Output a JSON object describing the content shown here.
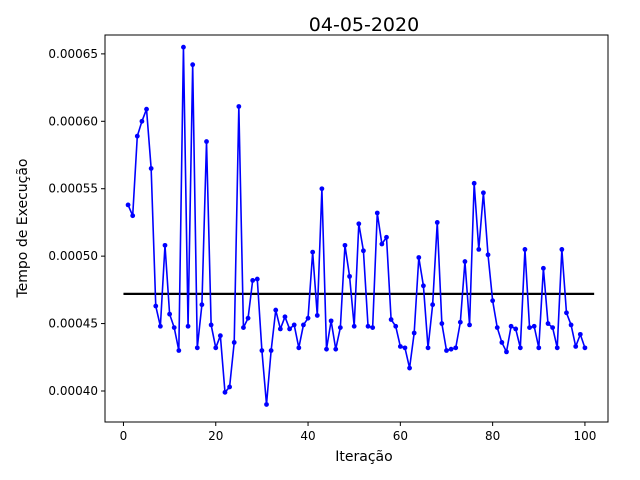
{
  "chart_data": {
    "type": "line",
    "title": "04-05-2020",
    "xlabel": "Iteração",
    "ylabel": "Tempo de Execução",
    "xlim": [
      -4,
      105
    ],
    "ylim": [
      0.000377,
      0.000664
    ],
    "xticks": [
      0,
      20,
      40,
      60,
      80,
      100
    ],
    "yticks": [
      0.0004,
      0.00045,
      0.0005,
      0.00055,
      0.0006,
      0.00065
    ],
    "ytick_labels": [
      "0.00040",
      "0.00045",
      "0.00050",
      "0.00055",
      "0.00060",
      "0.00065"
    ],
    "grid": false,
    "colors": {
      "series": "#0000ff",
      "reference": "#000000"
    },
    "series": [
      {
        "x": [
          1,
          2,
          3,
          4,
          5,
          6,
          7,
          8,
          9,
          10,
          11,
          12,
          13,
          14,
          15,
          16,
          17,
          18,
          19,
          20,
          21,
          22,
          23,
          24,
          25,
          26,
          27,
          28,
          29,
          30,
          31,
          32,
          33,
          34,
          35,
          36,
          37,
          38,
          39,
          40,
          41,
          42,
          43,
          44,
          45,
          46,
          47,
          48,
          49,
          50,
          51,
          52,
          53,
          54,
          55,
          56,
          57,
          58,
          59,
          60,
          61,
          62,
          63,
          64,
          65,
          66,
          67,
          68,
          69,
          70,
          71,
          72,
          73,
          74,
          75,
          76,
          77,
          78,
          79,
          80,
          81,
          82,
          83,
          84,
          85,
          86,
          87,
          88,
          89,
          90,
          91,
          92,
          93,
          94,
          95,
          96,
          97,
          98,
          99,
          100
        ],
        "values": [
          0.000538,
          0.00053,
          0.000589,
          0.0006,
          0.000609,
          0.000565,
          0.000463,
          0.000448,
          0.000508,
          0.000457,
          0.000447,
          0.00043,
          0.000655,
          0.000448,
          0.000642,
          0.000432,
          0.000464,
          0.000585,
          0.000449,
          0.000432,
          0.000441,
          0.000399,
          0.000403,
          0.000436,
          0.000611,
          0.000447,
          0.000454,
          0.000482,
          0.000483,
          0.00043,
          0.00039,
          0.00043,
          0.00046,
          0.000446,
          0.000455,
          0.000446,
          0.000449,
          0.000432,
          0.000449,
          0.000454,
          0.000503,
          0.000456,
          0.00055,
          0.000431,
          0.000452,
          0.000431,
          0.000447,
          0.000508,
          0.000485,
          0.000448,
          0.000524,
          0.000504,
          0.000448,
          0.000447,
          0.000532,
          0.000509,
          0.000514,
          0.000453,
          0.000448,
          0.000433,
          0.000432,
          0.000417,
          0.000443,
          0.000499,
          0.000478,
          0.000432,
          0.000464,
          0.000525,
          0.00045,
          0.00043,
          0.000431,
          0.000432,
          0.000451,
          0.000496,
          0.000449,
          0.000554,
          0.000505,
          0.000547,
          0.000501,
          0.000467,
          0.000447,
          0.000436,
          0.000429,
          0.000448,
          0.000446,
          0.000432,
          0.000505,
          0.000447,
          0.000448,
          0.000432,
          0.000491,
          0.00045,
          0.000447,
          0.000432,
          0.000505,
          0.000458,
          0.000449,
          0.000433,
          0.000442,
          0.000432
        ]
      }
    ],
    "reference_line": {
      "y": 0.000472,
      "x_start": 0,
      "x_end": 102
    }
  }
}
